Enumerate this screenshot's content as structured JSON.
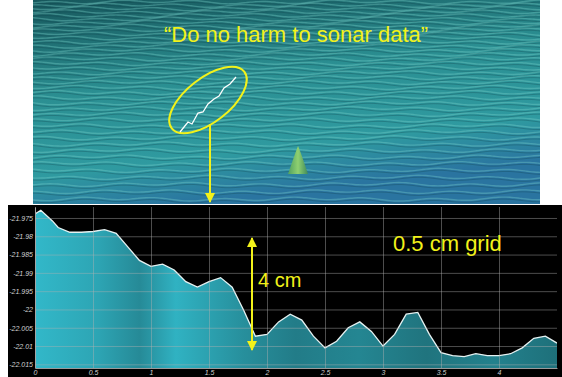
{
  "chart_data": {
    "type": "area",
    "title": "“Do no harm to sonar data”",
    "annotations": [
      "4 cm",
      "0.5 cm grid"
    ],
    "x": [
      0,
      0.05,
      0.15,
      0.2,
      0.3,
      0.4,
      0.5,
      0.6,
      0.7,
      0.8,
      0.9,
      1.0,
      1.1,
      1.2,
      1.3,
      1.4,
      1.5,
      1.6,
      1.7,
      1.8,
      1.9,
      2.0,
      2.1,
      2.2,
      2.3,
      2.4,
      2.5,
      2.6,
      2.7,
      2.8,
      2.9,
      3.0,
      3.1,
      3.2,
      3.3,
      3.4,
      3.5,
      3.6,
      3.7,
      3.8,
      3.9,
      4.0,
      4.1,
      4.2,
      4.3,
      4.4,
      4.5
    ],
    "values": [
      -21.9739,
      -21.9729,
      -21.9758,
      -21.9776,
      -21.9789,
      -21.9789,
      -21.9787,
      -21.9782,
      -21.9792,
      -21.9829,
      -21.9866,
      -21.9882,
      -21.9876,
      -21.9892,
      -21.9924,
      -21.9939,
      -21.9924,
      -21.9913,
      -21.9939,
      -22.0003,
      -22.0073,
      -22.0068,
      -22.0034,
      -22.0013,
      -22.0029,
      -22.0073,
      -22.0105,
      -22.0087,
      -22.005,
      -22.0034,
      -22.006,
      -22.01,
      -22.0068,
      -22.0013,
      -22.0008,
      -22.0068,
      -22.0118,
      -22.0126,
      -22.0129,
      -22.0121,
      -22.0126,
      -22.0126,
      -22.0121,
      -22.0105,
      -22.0079,
      -22.0073,
      -22.0092
    ],
    "color": "#2a9aa8",
    "xlim": [
      0,
      4.5
    ],
    "ylim": [
      -22.016,
      -21.972
    ],
    "xticks": [
      0,
      0.5,
      1,
      1.5,
      2,
      2.5,
      3,
      3.5,
      4
    ],
    "yticks": [
      -21.975,
      -21.98,
      -21.985,
      -21.99,
      -21.995,
      -22,
      -22.005,
      -22.01,
      -22.015
    ],
    "grid": true
  }
}
